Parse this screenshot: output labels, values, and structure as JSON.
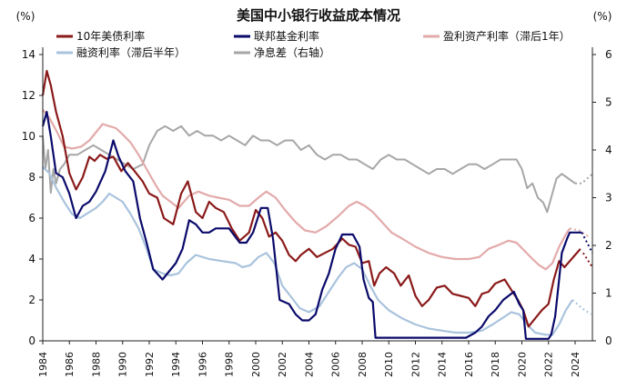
{
  "chart_data": {
    "type": "line",
    "title": "美国中小银行收益成本情况",
    "left_unit": "(%)",
    "right_unit": "(%)",
    "x_ticks": [
      "1984",
      "1986",
      "1988",
      "1990",
      "1992",
      "1994",
      "1996",
      "1998",
      "2000",
      "2002",
      "2004",
      "2006",
      "2008",
      "2010",
      "2012",
      "2014",
      "2016",
      "2018",
      "2020",
      "2022",
      "2024"
    ],
    "x_range": [
      1984,
      2025.3
    ],
    "y_left": {
      "min": 0,
      "max": 14,
      "ticks": [
        "0",
        "2",
        "4",
        "6",
        "8",
        "10",
        "12",
        "14"
      ]
    },
    "y_right": {
      "min": 0,
      "max": 6,
      "ticks": [
        "0",
        "1",
        "2",
        "3",
        "4",
        "5",
        "6"
      ]
    },
    "grid": false,
    "legend_position": "top",
    "series": [
      {
        "name": "10年美债利率",
        "color": "#8b1a1a",
        "axis": "left",
        "width": 2.2,
        "x": [
          1984.0,
          1984.3,
          1984.6,
          1985.0,
          1985.5,
          1986.0,
          1986.5,
          1987.0,
          1987.5,
          1987.9,
          1988.3,
          1988.8,
          1989.3,
          1989.9,
          1990.4,
          1990.9,
          1991.5,
          1992.0,
          1992.6,
          1993.1,
          1993.8,
          1994.4,
          1994.9,
          1995.5,
          1996.0,
          1996.5,
          1997.0,
          1997.6,
          1998.2,
          1998.8,
          1999.5,
          2000.0,
          2000.5,
          2001.0,
          2001.5,
          2002.0,
          2002.5,
          2003.0,
          2003.4,
          2004.0,
          2004.6,
          2005.2,
          2005.8,
          2006.5,
          2007.0,
          2007.5,
          2008.0,
          2008.5,
          2008.9,
          2009.3,
          2009.8,
          2010.4,
          2010.9,
          2011.5,
          2012.0,
          2012.5,
          2013.0,
          2013.6,
          2014.2,
          2014.8,
          2015.4,
          2016.0,
          2016.5,
          2017.0,
          2017.5,
          2018.0,
          2018.7,
          2019.2,
          2019.7,
          2020.1,
          2020.5,
          2021.0,
          2021.5,
          2022.0,
          2022.4,
          2022.8,
          2023.2,
          2023.6,
          2024.0,
          2024.4
        ],
        "y": [
          12.0,
          13.2,
          12.5,
          11.2,
          10.0,
          8.2,
          7.4,
          8.0,
          9.0,
          8.8,
          9.1,
          8.9,
          9.0,
          8.3,
          8.7,
          8.3,
          7.8,
          7.2,
          7.0,
          6.0,
          5.7,
          7.2,
          7.8,
          6.3,
          6.0,
          6.8,
          6.5,
          6.3,
          5.5,
          4.9,
          5.3,
          6.4,
          6.0,
          5.1,
          5.3,
          4.9,
          4.2,
          3.9,
          4.2,
          4.5,
          4.1,
          4.3,
          4.5,
          5.0,
          4.7,
          4.6,
          3.8,
          3.9,
          2.7,
          3.3,
          3.6,
          3.3,
          2.7,
          3.2,
          2.2,
          1.7,
          2.0,
          2.6,
          2.7,
          2.3,
          2.2,
          2.1,
          1.7,
          2.3,
          2.4,
          2.8,
          3.0,
          2.5,
          2.0,
          1.5,
          0.7,
          1.1,
          1.5,
          1.8,
          3.0,
          3.9,
          3.6,
          3.9,
          4.2,
          4.5
        ],
        "proj_x": [
          2024.6,
          2025.3
        ],
        "proj_y": [
          4.3,
          3.6
        ]
      },
      {
        "name": "联邦基金利率",
        "color": "#0a0a6b",
        "axis": "left",
        "width": 2.2,
        "x": [
          1984.0,
          1984.3,
          1984.6,
          1985.0,
          1985.5,
          1986.0,
          1986.5,
          1987.0,
          1987.5,
          1988.0,
          1988.7,
          1989.3,
          1989.7,
          1990.2,
          1990.8,
          1991.3,
          1991.8,
          1992.3,
          1993.0,
          1994.0,
          1994.5,
          1995.0,
          1995.5,
          1996.0,
          1996.5,
          1997.0,
          1998.0,
          1998.8,
          1999.3,
          1999.8,
          2000.4,
          2000.9,
          2001.3,
          2001.8,
          2002.5,
          2003.0,
          2003.5,
          2004.0,
          2004.5,
          2005.0,
          2005.5,
          2006.0,
          2006.5,
          2007.3,
          2007.8,
          2008.1,
          2008.5,
          2008.8,
          2009.0,
          2015.8,
          2016.5,
          2017.0,
          2017.5,
          2018.0,
          2018.6,
          2019.4,
          2019.8,
          2020.1,
          2020.3,
          2022.0,
          2022.2,
          2022.5,
          2022.8,
          2023.0,
          2023.4,
          2023.6,
          2024.5
        ],
        "y": [
          10.5,
          11.2,
          10.0,
          8.2,
          8.0,
          7.2,
          6.0,
          6.6,
          6.8,
          7.3,
          8.3,
          9.8,
          9.0,
          8.3,
          7.8,
          6.0,
          4.8,
          3.5,
          3.0,
          3.8,
          4.5,
          5.9,
          5.7,
          5.3,
          5.3,
          5.5,
          5.5,
          4.8,
          4.8,
          5.3,
          6.5,
          6.5,
          5.0,
          2.0,
          1.8,
          1.3,
          1.0,
          1.0,
          1.3,
          2.5,
          3.3,
          4.5,
          5.2,
          5.2,
          4.6,
          3.0,
          2.1,
          1.9,
          0.15,
          0.15,
          0.4,
          0.7,
          1.2,
          1.5,
          2.0,
          2.4,
          1.8,
          1.5,
          0.1,
          0.1,
          0.3,
          1.2,
          3.0,
          4.3,
          5.0,
          5.3,
          5.3
        ],
        "proj_x": [
          2024.5,
          2025.3
        ],
        "proj_y": [
          5.3,
          4.3
        ]
      },
      {
        "name": "盈利资产利率（滞后1年）",
        "color": "#e3aaaa",
        "axis": "left",
        "width": 2.2,
        "x": [
          1984.0,
          1984.5,
          1985.0,
          1985.6,
          1986.2,
          1986.9,
          1987.5,
          1988.0,
          1988.5,
          1989.0,
          1989.5,
          1990.0,
          1990.6,
          1991.2,
          1991.8,
          1992.5,
          1993.0,
          1993.6,
          1994.2,
          1995.0,
          1995.7,
          1996.5,
          1997.2,
          1998.0,
          1998.8,
          1999.5,
          2000.2,
          2000.8,
          2001.5,
          2002.2,
          2003.0,
          2003.7,
          2004.5,
          2005.3,
          2006.2,
          2007.0,
          2007.6,
          2008.2,
          2008.8,
          2009.5,
          2010.2,
          2011.0,
          2012.0,
          2013.0,
          2014.0,
          2015.0,
          2016.0,
          2016.8,
          2017.5,
          2018.3,
          2019.0,
          2019.6,
          2020.2,
          2020.8,
          2021.3,
          2021.8,
          2022.3,
          2022.8,
          2023.3,
          2023.6
        ],
        "y": [
          11.3,
          10.9,
          10.3,
          9.5,
          9.4,
          9.5,
          9.8,
          10.2,
          10.6,
          10.5,
          10.4,
          10.1,
          9.7,
          9.1,
          8.4,
          7.6,
          7.1,
          6.8,
          6.5,
          7.1,
          7.3,
          7.1,
          7.0,
          6.9,
          6.6,
          6.6,
          7.0,
          7.3,
          7.0,
          6.4,
          5.8,
          5.4,
          5.3,
          5.6,
          6.1,
          6.6,
          6.8,
          6.6,
          6.3,
          5.8,
          5.3,
          5.0,
          4.6,
          4.3,
          4.1,
          4.0,
          4.0,
          4.1,
          4.5,
          4.7,
          4.9,
          4.8,
          4.4,
          4.0,
          3.7,
          3.5,
          3.8,
          4.6,
          5.2,
          5.5
        ],
        "proj_x": [
          2023.6,
          2024.3,
          2025.0
        ],
        "proj_y": [
          5.5,
          5.4,
          5.1
        ]
      },
      {
        "name": "融资利率（滞后半年）",
        "color": "#a9c3dd",
        "axis": "left",
        "width": 2.2,
        "x": [
          1984.0,
          1984.5,
          1985.0,
          1985.6,
          1986.2,
          1986.8,
          1987.5,
          1988.0,
          1988.5,
          1989.0,
          1989.5,
          1990.0,
          1990.6,
          1991.2,
          1991.8,
          1992.3,
          1993.0,
          1993.6,
          1994.2,
          1994.8,
          1995.5,
          1996.5,
          1997.5,
          1998.5,
          1999.0,
          1999.6,
          2000.2,
          2000.8,
          2001.4,
          2002.0,
          2002.6,
          2003.3,
          2004.0,
          2004.8,
          2005.5,
          2006.2,
          2006.8,
          2007.4,
          2008.0,
          2008.6,
          2009.2,
          2010.0,
          2011.0,
          2012.0,
          2013.0,
          2014.0,
          2015.0,
          2016.0,
          2017.0,
          2017.8,
          2018.5,
          2019.2,
          2019.8,
          2020.4,
          2021.0,
          2021.8,
          2022.3,
          2022.8,
          2023.3,
          2023.8
        ],
        "y": [
          8.5,
          8.2,
          7.5,
          6.8,
          6.2,
          6.0,
          6.3,
          6.5,
          6.8,
          7.2,
          7.0,
          6.8,
          6.2,
          5.5,
          4.5,
          3.5,
          3.3,
          3.2,
          3.3,
          3.8,
          4.2,
          4.0,
          3.9,
          3.8,
          3.6,
          3.7,
          4.1,
          4.3,
          3.8,
          2.7,
          2.2,
          1.6,
          1.4,
          1.7,
          2.4,
          3.1,
          3.6,
          3.8,
          3.5,
          2.7,
          2.0,
          1.5,
          1.1,
          0.8,
          0.6,
          0.5,
          0.4,
          0.4,
          0.5,
          0.8,
          1.1,
          1.4,
          1.3,
          0.8,
          0.4,
          0.3,
          0.3,
          0.8,
          1.5,
          2.0
        ],
        "proj_x": [
          2023.8,
          2024.5,
          2025.2
        ],
        "proj_y": [
          2.0,
          1.6,
          1.3
        ]
      },
      {
        "name": "净息差（右轴）",
        "color": "#a6a6a6",
        "axis": "right",
        "width": 2.0,
        "x": [
          1984.0,
          1984.2,
          1984.4,
          1984.6,
          1984.8,
          1985.0,
          1985.3,
          1985.6,
          1986.0,
          1986.6,
          1987.2,
          1987.8,
          1988.4,
          1989.0,
          1989.6,
          1990.2,
          1990.8,
          1991.5,
          1992.0,
          1992.6,
          1993.2,
          1993.8,
          1994.4,
          1995.0,
          1995.6,
          1996.2,
          1996.8,
          1997.4,
          1998.0,
          1998.6,
          1999.2,
          1999.8,
          2000.4,
          2001.0,
          2001.6,
          2002.2,
          2002.8,
          2003.4,
          2004.0,
          2004.6,
          2005.2,
          2005.8,
          2006.4,
          2007.0,
          2007.6,
          2008.2,
          2008.8,
          2009.4,
          2010.0,
          2010.6,
          2011.2,
          2011.8,
          2012.4,
          2013.0,
          2013.6,
          2014.2,
          2014.8,
          2015.4,
          2016.0,
          2016.6,
          2017.2,
          2017.8,
          2018.4,
          2019.0,
          2019.6,
          2020.0,
          2020.4,
          2020.8,
          2021.2,
          2021.6,
          2021.9,
          2022.2,
          2022.6,
          2023.0,
          2023.5,
          2024.0
        ],
        "y": [
          4.3,
          3.6,
          4.0,
          3.1,
          3.6,
          3.3,
          3.6,
          3.7,
          3.9,
          3.9,
          4.0,
          4.1,
          4.0,
          3.9,
          3.8,
          3.7,
          3.6,
          3.7,
          4.1,
          4.4,
          4.5,
          4.4,
          4.5,
          4.3,
          4.4,
          4.3,
          4.3,
          4.2,
          4.3,
          4.2,
          4.1,
          4.3,
          4.2,
          4.2,
          4.1,
          4.2,
          4.2,
          4.0,
          4.1,
          3.9,
          3.8,
          3.9,
          3.9,
          3.8,
          3.8,
          3.7,
          3.6,
          3.8,
          3.9,
          3.8,
          3.8,
          3.7,
          3.6,
          3.5,
          3.6,
          3.6,
          3.5,
          3.6,
          3.7,
          3.7,
          3.6,
          3.7,
          3.8,
          3.8,
          3.8,
          3.6,
          3.2,
          3.3,
          3.0,
          2.9,
          2.7,
          3.0,
          3.4,
          3.5,
          3.4,
          3.3
        ],
        "proj_x": [
          2024.0,
          2024.5,
          2025.3
        ],
        "proj_y": [
          3.3,
          3.3,
          3.5
        ]
      }
    ]
  }
}
